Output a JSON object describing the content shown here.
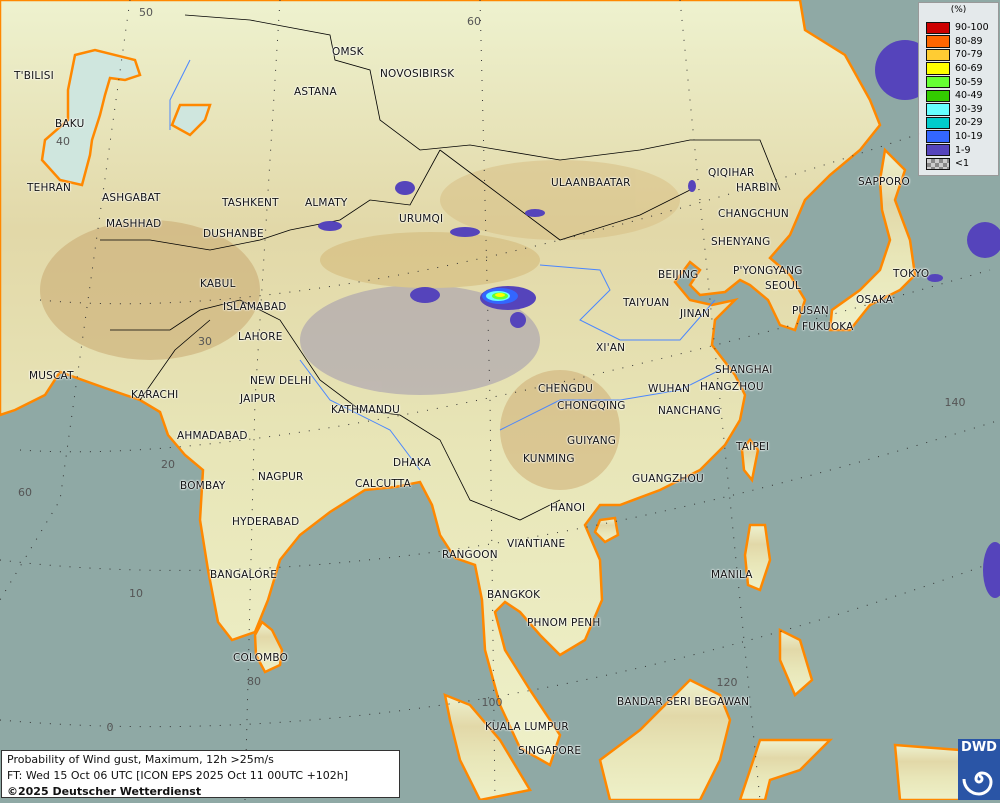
{
  "product": {
    "title_line": "Probability of Wind gust, Maximum, 12h >25m/s",
    "forecast_line": "FT: Wed 15 Oct 06 UTC [ICON EPS 2025 Oct 11 00UTC +102h]",
    "copyright": "©2025 Deutscher Wetterdienst",
    "logo_text": "DWD"
  },
  "legend": {
    "unit": "(%)",
    "classes": [
      {
        "label": "90-100",
        "color": "#cc0000"
      },
      {
        "label": "80-89",
        "color": "#ff6600"
      },
      {
        "label": "70-79",
        "color": "#ffcc33"
      },
      {
        "label": "60-69",
        "color": "#ffff00"
      },
      {
        "label": "50-59",
        "color": "#66ff33"
      },
      {
        "label": "40-49",
        "color": "#33cc00"
      },
      {
        "label": "30-39",
        "color": "#66ffff"
      },
      {
        "label": "20-29",
        "color": "#00cccc"
      },
      {
        "label": "10-19",
        "color": "#3366ff"
      },
      {
        "label": "1-9",
        "color": "#5544bb"
      },
      {
        "label": "<1",
        "color": "checker"
      }
    ]
  },
  "colors": {
    "sea": "#8fa9a5",
    "coast": "#ff8800",
    "border": "#000000",
    "river": "#4a86ff"
  },
  "graticule": [
    "50",
    "60",
    "40",
    "30",
    "20",
    "10",
    "0",
    "60",
    "80",
    "100",
    "120",
    "140"
  ],
  "cities": [
    "T'BILISI",
    "BAKU",
    "TEHRAN",
    "ASHGABAT",
    "MASHHAD",
    "TASHKENT",
    "ALMATY",
    "DUSHANBE",
    "KABUL",
    "ISLAMABAD",
    "LAHORE",
    "NEW DELHI",
    "JAIPUR",
    "KARACHI",
    "MUSCAT",
    "OMSK",
    "NOVOSIBIRSK",
    "ASTANA",
    "URUMQI",
    "ULAANBAATAR",
    "QIQIHAR",
    "HARBIN",
    "CHANGCHUN",
    "SHENYANG",
    "BEIJING",
    "P'YONGYANG",
    "SEOUL",
    "PUSAN",
    "FUKUOKA",
    "OSAKA",
    "TOKYO",
    "SAPPORO",
    "TAIYUAN",
    "JINAN",
    "XI'AN",
    "CHENGDU",
    "CHONGQING",
    "WUHAN",
    "SHANGHAI",
    "HANGZHOU",
    "NANCHANG",
    "GUIYANG",
    "KUNMING",
    "TAIPEI",
    "GUANGZHOU",
    "KATHMANDU",
    "AHMADABAD",
    "BOMBAY",
    "NAGPUR",
    "CALCUTTA",
    "DHAKA",
    "HYDERABAD",
    "BANGALORE",
    "COLOMBO",
    "HANOI",
    "VIANTIANE",
    "RANGOON",
    "BANGKOK",
    "PHNOM PENH",
    "MANILA",
    "BANDAR SERI BEGAWAN",
    "KUALA LUMPUR",
    "SINGAPORE"
  ]
}
